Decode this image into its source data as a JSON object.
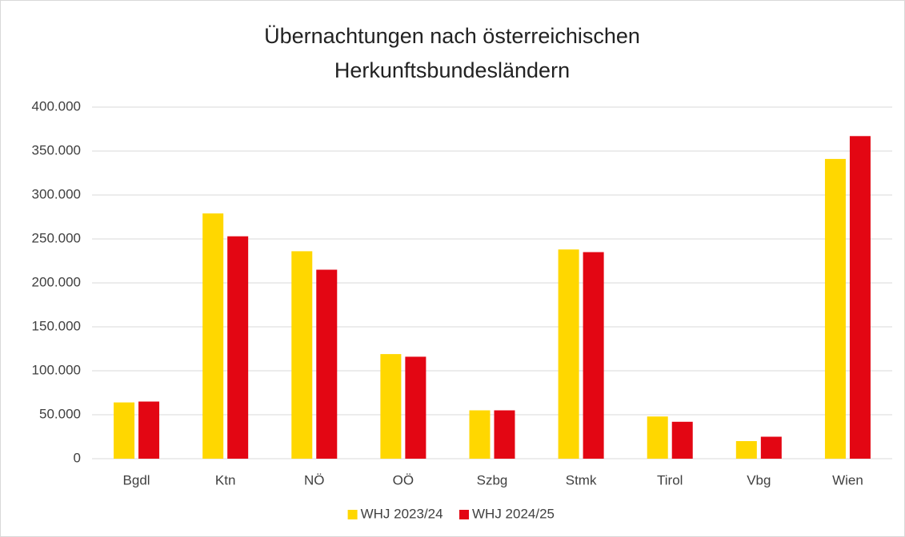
{
  "chart_data": {
    "type": "bar",
    "title": [
      "Übernachtungen nach österreichischen",
      "Herkunftsbundesländern"
    ],
    "categories": [
      "Bgdl",
      "Ktn",
      "NÖ",
      "OÖ",
      "Szbg",
      "Stmk",
      "Tirol",
      "Vbg",
      "Wien"
    ],
    "series": [
      {
        "name": "WHJ 2023/24",
        "color": "#ffd700",
        "values": [
          64000,
          279000,
          236000,
          119000,
          55000,
          238000,
          48000,
          20000,
          341000
        ]
      },
      {
        "name": "WHJ 2024/25",
        "color": "#e30613",
        "values": [
          65000,
          253000,
          215000,
          116000,
          55000,
          235000,
          42000,
          25000,
          367000
        ]
      }
    ],
    "ylim": [
      0,
      400000
    ],
    "yticks": [
      0,
      {
        "value": 50000,
        "label": "50.000"
      },
      {
        "value": 100000,
        "label": "100.000"
      },
      {
        "value": 150000,
        "label": "150.000"
      },
      {
        "value": 200000,
        "label": "200.000"
      },
      {
        "value": 250000,
        "label": "250.000"
      },
      {
        "value": 300000,
        "label": "300.000"
      },
      {
        "value": 350000,
        "label": "350.000"
      },
      {
        "value": 400000,
        "label": "400.000"
      }
    ],
    "grid": true,
    "legend": "bottom"
  }
}
